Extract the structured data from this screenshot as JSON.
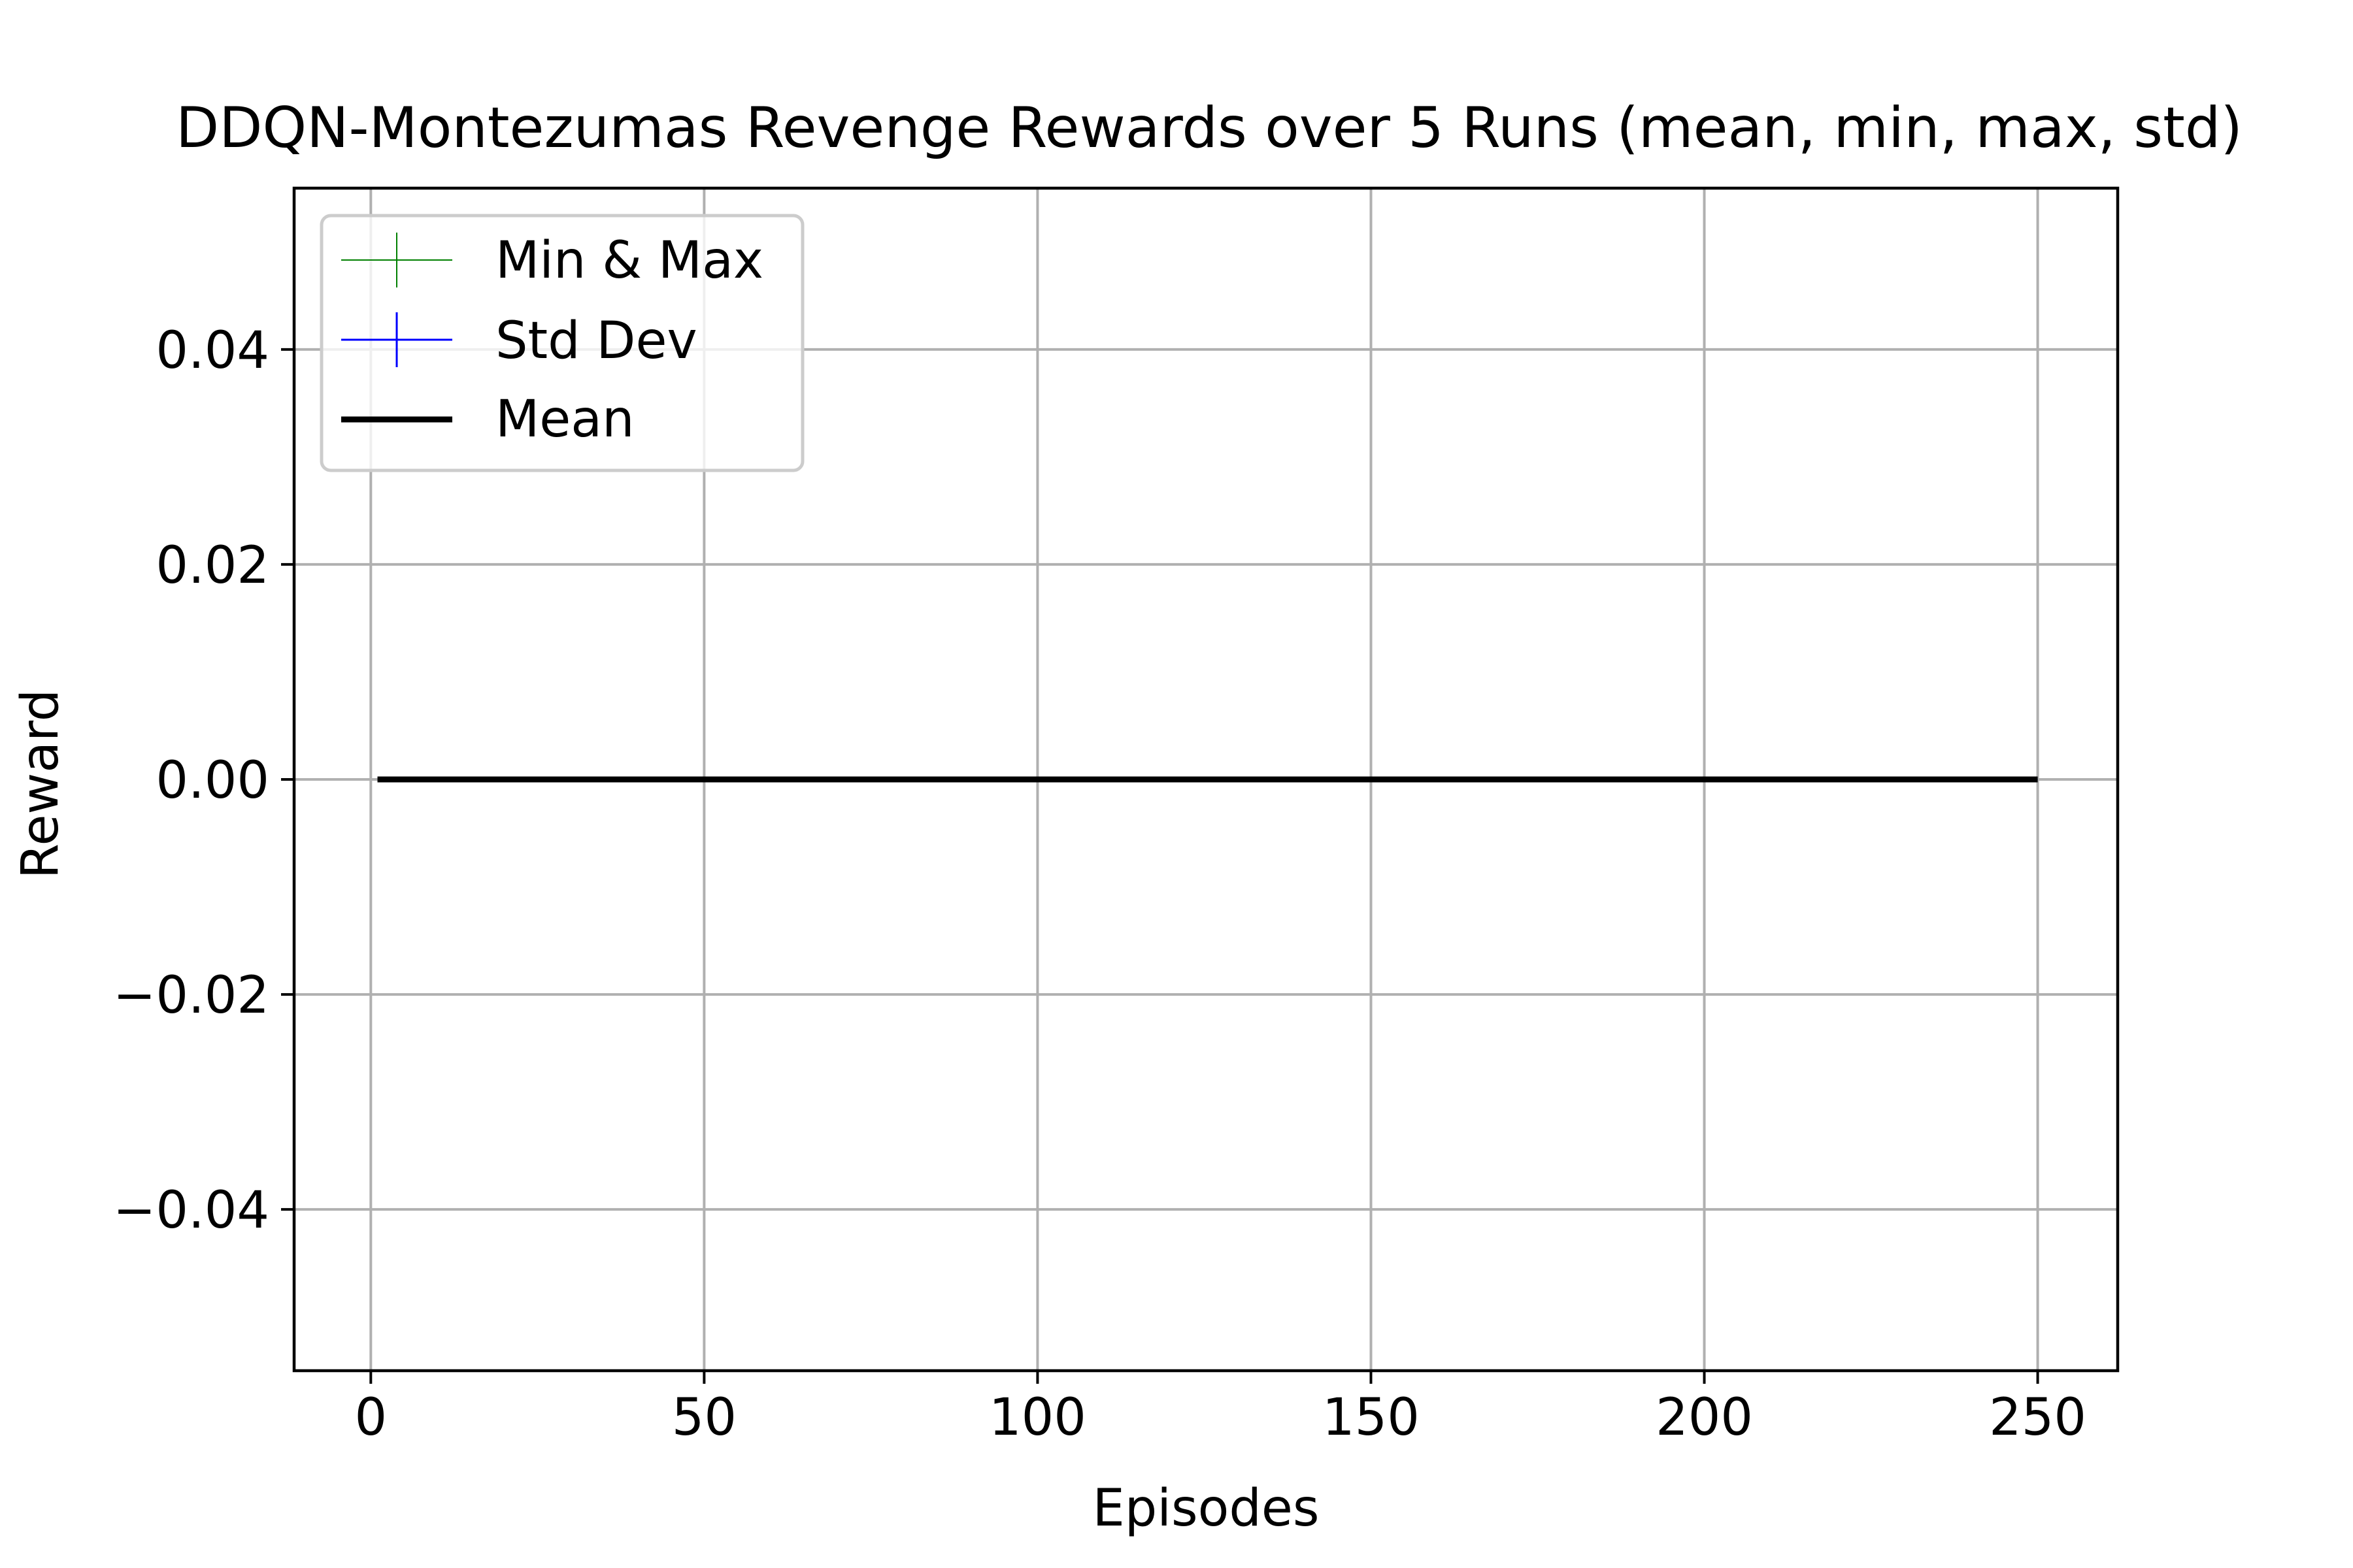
{
  "chart_data": {
    "type": "line",
    "title": "DDQN-Montezumas Revenge Rewards over 5 Runs (mean, min, max, std)",
    "xlabel": "Episodes",
    "ylabel": "Reward",
    "xlim": [
      -11.5,
      262
    ],
    "ylim": [
      -0.055,
      0.055
    ],
    "x_ticks": [
      0,
      50,
      100,
      150,
      200,
      250
    ],
    "x_tick_labels": [
      "0",
      "50",
      "100",
      "150",
      "200",
      "250"
    ],
    "y_ticks": [
      -0.04,
      -0.02,
      0.0,
      0.02,
      0.04
    ],
    "y_tick_labels": [
      "−0.04",
      "−0.02",
      "0.00",
      "0.02",
      "0.04"
    ],
    "grid": true,
    "legend_position": "upper-left",
    "x_range": [
      1,
      250
    ],
    "series": [
      {
        "name": "Min & Max",
        "color": "#008000",
        "style": "errorbar",
        "x_range": [
          1,
          250
        ],
        "min": 0,
        "max": 0
      },
      {
        "name": "Std Dev",
        "color": "#0000ff",
        "style": "errorbar",
        "x_range": [
          1,
          250
        ],
        "mean": 0,
        "std": 0
      },
      {
        "name": "Mean",
        "color": "#000000",
        "style": "line",
        "x_range": [
          1,
          250
        ],
        "value": 0
      }
    ]
  }
}
